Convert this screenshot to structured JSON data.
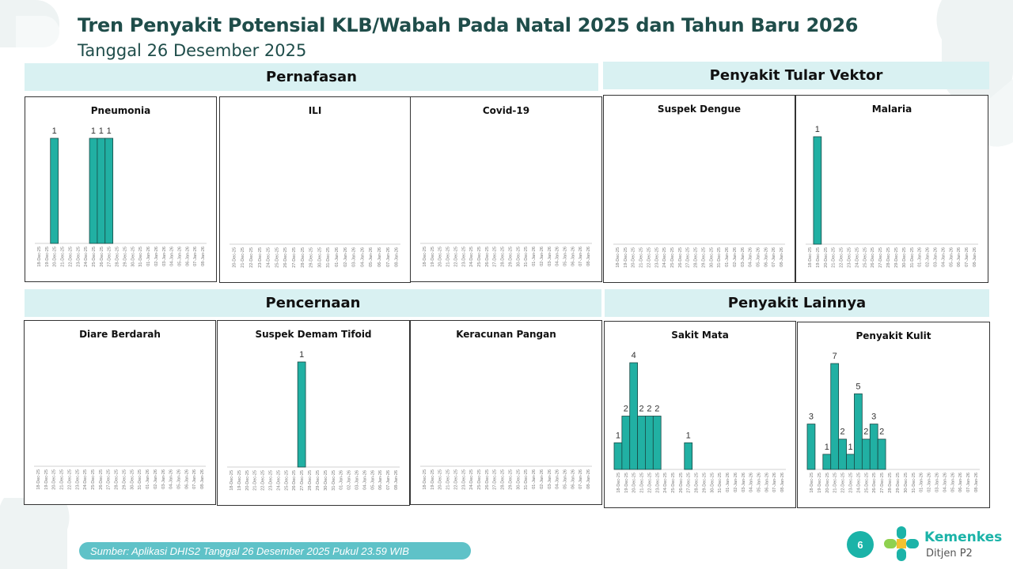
{
  "header": {
    "title": "Tren Penyakit Potensial KLB/Wabah Pada Natal 2025 dan Tahun Baru 2026",
    "subtitle": "Tanggal 26 Desember 2025"
  },
  "sections": {
    "pernafasan": "Pernafasan",
    "vektor": "Penyakit Tular Vektor",
    "pencernaan": "Pencernaan",
    "lainnya": "Penyakit Lainnya"
  },
  "footer": {
    "source": "Sumber: Aplikasi DHIS2 Tanggal 26 Desember 2025 Pukul 23.59 WIB",
    "page_number": "6",
    "brand": "Kemenkes",
    "brand_sub": "Ditjen P2"
  },
  "colors": {
    "bar": "#21b0a3",
    "header_bg": "#d9f1f2",
    "footer_bg": "#5fc2c8"
  },
  "chart_data": [
    {
      "id": "pneumonia",
      "type": "bar",
      "title": "Pneumonia",
      "categories": [
        "18-Dec-25",
        "19-Dec-25",
        "20-Dec-25",
        "21-Dec-25",
        "22-Dec-25",
        "23-Dec-25",
        "24-Dec-25",
        "25-Dec-25",
        "26-Dec-25",
        "27-Dec-25",
        "28-Dec-25",
        "29-Dec-25",
        "30-Dec-25",
        "31-Dec-25",
        "01-Jan-26",
        "02-Jan-26",
        "03-Jan-26",
        "04-Jan-26",
        "05-Jan-26",
        "06-Jan-26",
        "07-Jan-26",
        "08-Jan-26"
      ],
      "values": [
        0,
        0,
        1,
        0,
        0,
        0,
        0,
        1,
        1,
        1,
        0,
        0,
        0,
        0,
        0,
        0,
        0,
        0,
        0,
        0,
        0,
        0
      ],
      "labels": [
        "",
        "",
        "1",
        "",
        "",
        "",
        "",
        "1",
        "1",
        "1",
        "",
        "",
        "",
        "",
        "",
        "",
        "",
        "",
        "",
        "",
        "",
        ""
      ]
    },
    {
      "id": "ili",
      "type": "bar",
      "title": "ILI",
      "categories": [
        "20-Dec-25",
        "21-Dec-25",
        "22-Dec-25",
        "23-Dec-25",
        "24-Dec-25",
        "25-Dec-25",
        "26-Dec-25",
        "27-Dec-25",
        "28-Dec-25",
        "29-Dec-25",
        "30-Dec-25",
        "31-Dec-25",
        "01-Jan-26",
        "02-Jan-26",
        "03-Jan-26",
        "04-Jan-26",
        "05-Jan-26",
        "06-Jan-26",
        "07-Jan-26",
        "08-Jan-26"
      ],
      "values": [
        0,
        0,
        0,
        0,
        0,
        0,
        0,
        0,
        0,
        0,
        0,
        0,
        0,
        0,
        0,
        0,
        0,
        0,
        0,
        0
      ],
      "labels": [
        "",
        "",
        "",
        "",
        "",
        "",
        "",
        "",
        "",
        "",
        "",
        "",
        "",
        "",
        "",
        "",
        "",
        "",
        "",
        ""
      ]
    },
    {
      "id": "covid",
      "type": "bar",
      "title": "Covid-19",
      "categories": [
        "18-Dec-25",
        "19-Dec-25",
        "20-Dec-25",
        "21-Dec-25",
        "22-Dec-25",
        "23-Dec-25",
        "24-Dec-25",
        "25-Dec-25",
        "26-Dec-25",
        "27-Dec-25",
        "28-Dec-25",
        "29-Dec-25",
        "30-Dec-25",
        "31-Dec-25",
        "01-Jan-26",
        "02-Jan-26",
        "03-Jan-26",
        "04-Jan-26",
        "05-Jan-26",
        "06-Jan-26",
        "07-Jan-26",
        "08-Jan-26"
      ],
      "values": [
        0,
        0,
        0,
        0,
        0,
        0,
        0,
        0,
        0,
        0,
        0,
        0,
        0,
        0,
        0,
        0,
        0,
        0,
        0,
        0,
        0,
        0
      ],
      "labels": [
        "",
        "",
        "",
        "",
        "",
        "",
        "",
        "",
        "",
        "",
        "",
        "",
        "",
        "",
        "",
        "",
        "",
        "",
        "",
        "",
        "",
        ""
      ]
    },
    {
      "id": "dengue",
      "type": "bar",
      "title": "Suspek Dengue",
      "categories": [
        "18-Dec-25",
        "19-Dec-25",
        "20-Dec-25",
        "21-Dec-25",
        "22-Dec-25",
        "23-Dec-25",
        "24-Dec-25",
        "25-Dec-25",
        "26-Dec-25",
        "27-Dec-25",
        "28-Dec-25",
        "29-Dec-25",
        "30-Dec-25",
        "31-Dec-25",
        "01-Jan-26",
        "02-Jan-26",
        "03-Jan-26",
        "04-Jan-26",
        "05-Jan-26",
        "06-Jan-26",
        "07-Jan-26",
        "08-Jan-26"
      ],
      "values": [
        0,
        0,
        0,
        0,
        0,
        0,
        0,
        0,
        0,
        0,
        0,
        0,
        0,
        0,
        0,
        0,
        0,
        0,
        0,
        0,
        0,
        0
      ],
      "labels": [
        "",
        "",
        "",
        "",
        "",
        "",
        "",
        "",
        "",
        "",
        "",
        "",
        "",
        "",
        "",
        "",
        "",
        "",
        "",
        "",
        "",
        ""
      ]
    },
    {
      "id": "malaria",
      "type": "bar",
      "title": "Malaria",
      "categories": [
        "18-Dec-25",
        "19-Dec-25",
        "20-Dec-25",
        "21-Dec-25",
        "22-Dec-25",
        "23-Dec-25",
        "24-Dec-25",
        "25-Dec-25",
        "26-Dec-25",
        "27-Dec-25",
        "28-Dec-25",
        "29-Dec-25",
        "30-Dec-25",
        "31-Dec-25",
        "01-Jan-26",
        "02-Jan-26",
        "03-Jan-26",
        "04-Jan-26",
        "05-Jan-26",
        "06-Jan-26",
        "07-Jan-26",
        "08-Jan-26"
      ],
      "values": [
        0,
        1,
        0,
        0,
        0,
        0,
        0,
        0,
        0,
        0,
        0,
        0,
        0,
        0,
        0,
        0,
        0,
        0,
        0,
        0,
        0,
        0
      ],
      "labels": [
        "",
        "1",
        "",
        "",
        "",
        "",
        "",
        "",
        "",
        "",
        "",
        "",
        "",
        "",
        "",
        "",
        "",
        "",
        "",
        "",
        "",
        ""
      ]
    },
    {
      "id": "diare",
      "type": "bar",
      "title": "Diare Berdarah",
      "categories": [
        "18-Dec-25",
        "19-Dec-25",
        "20-Dec-25",
        "21-Dec-25",
        "22-Dec-25",
        "23-Dec-25",
        "24-Dec-25",
        "25-Dec-25",
        "26-Dec-25",
        "27-Dec-25",
        "28-Dec-25",
        "29-Dec-25",
        "30-Dec-25",
        "31-Dec-25",
        "01-Jan-26",
        "02-Jan-26",
        "03-Jan-26",
        "04-Jan-26",
        "05-Jan-26",
        "06-Jan-26",
        "07-Jan-26",
        "08-Jan-26"
      ],
      "values": [
        0,
        0,
        0,
        0,
        0,
        0,
        0,
        0,
        0,
        0,
        0,
        0,
        0,
        0,
        0,
        0,
        0,
        0,
        0,
        0,
        0,
        0
      ],
      "labels": [
        "",
        "",
        "",
        "",
        "",
        "",
        "",
        "",
        "",
        "",
        "",
        "",
        "",
        "",
        "",
        "",
        "",
        "",
        "",
        "",
        "",
        ""
      ]
    },
    {
      "id": "tifoid",
      "type": "bar",
      "title": "Suspek Demam Tifoid",
      "categories": [
        "18-Dec-25",
        "19-Dec-25",
        "20-Dec-25",
        "21-Dec-25",
        "22-Dec-25",
        "23-Dec-25",
        "24-Dec-25",
        "25-Dec-25",
        "26-Dec-25",
        "27-Dec-25",
        "28-Dec-25",
        "29-Dec-25",
        "30-Dec-25",
        "31-Dec-25",
        "01-Jan-26",
        "02-Jan-26",
        "03-Jan-26",
        "04-Jan-26",
        "05-Jan-26",
        "06-Jan-26",
        "07-Jan-26",
        "08-Jan-26"
      ],
      "values": [
        0,
        0,
        0,
        0,
        0,
        0,
        0,
        0,
        0,
        1,
        0,
        0,
        0,
        0,
        0,
        0,
        0,
        0,
        0,
        0,
        0,
        0
      ],
      "labels": [
        "",
        "",
        "",
        "",
        "",
        "",
        "",
        "",
        "",
        "1",
        "",
        "",
        "",
        "",
        "",
        "",
        "",
        "",
        "",
        "",
        "",
        ""
      ]
    },
    {
      "id": "keracunan",
      "type": "bar",
      "title": "Keracunan Pangan",
      "categories": [
        "18-Dec-25",
        "19-Dec-25",
        "20-Dec-25",
        "21-Dec-25",
        "22-Dec-25",
        "23-Dec-25",
        "24-Dec-25",
        "25-Dec-25",
        "26-Dec-25",
        "27-Dec-25",
        "28-Dec-25",
        "29-Dec-25",
        "30-Dec-25",
        "31-Dec-25",
        "01-Jan-26",
        "02-Jan-26",
        "03-Jan-26",
        "04-Jan-26",
        "05-Jan-26",
        "06-Jan-26",
        "07-Jan-26",
        "08-Jan-26"
      ],
      "values": [
        0,
        0,
        0,
        0,
        0,
        0,
        0,
        0,
        0,
        0,
        0,
        0,
        0,
        0,
        0,
        0,
        0,
        0,
        0,
        0,
        0,
        0
      ],
      "labels": [
        "",
        "",
        "",
        "",
        "",
        "",
        "",
        "",
        "",
        "",
        "",
        "",
        "",
        "",
        "",
        "",
        "",
        "",
        "",
        "",
        "",
        ""
      ]
    },
    {
      "id": "mata",
      "type": "bar",
      "title": "Sakit Mata",
      "categories": [
        "18-Dec-25",
        "19-Dec-25",
        "20-Dec-25",
        "21-Dec-25",
        "22-Dec-25",
        "23-Dec-25",
        "24-Dec-25",
        "25-Dec-25",
        "26-Dec-25",
        "27-Dec-25",
        "28-Dec-25",
        "29-Dec-25",
        "30-Dec-25",
        "31-Dec-25",
        "01-Jan-26",
        "02-Jan-26",
        "03-Jan-26",
        "04-Jan-26",
        "05-Jan-26",
        "06-Jan-26",
        "07-Jan-26",
        "08-Jan-26"
      ],
      "values": [
        1,
        2,
        4,
        2,
        2,
        2,
        0,
        0,
        0,
        1,
        0,
        0,
        0,
        0,
        0,
        0,
        0,
        0,
        0,
        0,
        0,
        0
      ],
      "labels": [
        "1",
        "2",
        "4",
        "2",
        "2",
        "2",
        "",
        "",
        "",
        "1",
        "",
        "",
        "",
        "",
        "",
        "",
        "",
        "",
        "",
        "",
        "",
        ""
      ]
    },
    {
      "id": "kulit",
      "type": "bar",
      "title": "Penyakit Kulit",
      "categories": [
        "18-Dec-25",
        "19-Dec-25",
        "20-Dec-25",
        "21-Dec-25",
        "22-Dec-25",
        "23-Dec-25",
        "24-Dec-25",
        "25-Dec-25",
        "26-Dec-25",
        "27-Dec-25",
        "28-Dec-25",
        "29-Dec-25",
        "30-Dec-25",
        "31-Dec-25",
        "01-Jan-26",
        "02-Jan-26",
        "03-Jan-26",
        "04-Jan-26",
        "05-Jan-26",
        "06-Jan-26",
        "07-Jan-26",
        "08-Jan-26"
      ],
      "values": [
        3,
        0,
        1,
        7,
        2,
        1,
        5,
        2,
        3,
        2,
        0,
        0,
        0,
        0,
        0,
        0,
        0,
        0,
        0,
        0,
        0,
        0
      ],
      "labels": [
        "3",
        "",
        "1",
        "7",
        "2",
        "1",
        "5",
        "2",
        "3",
        "2",
        "",
        "",
        "",
        "",
        "",
        "",
        "",
        "",
        "",
        "",
        "",
        ""
      ]
    }
  ]
}
